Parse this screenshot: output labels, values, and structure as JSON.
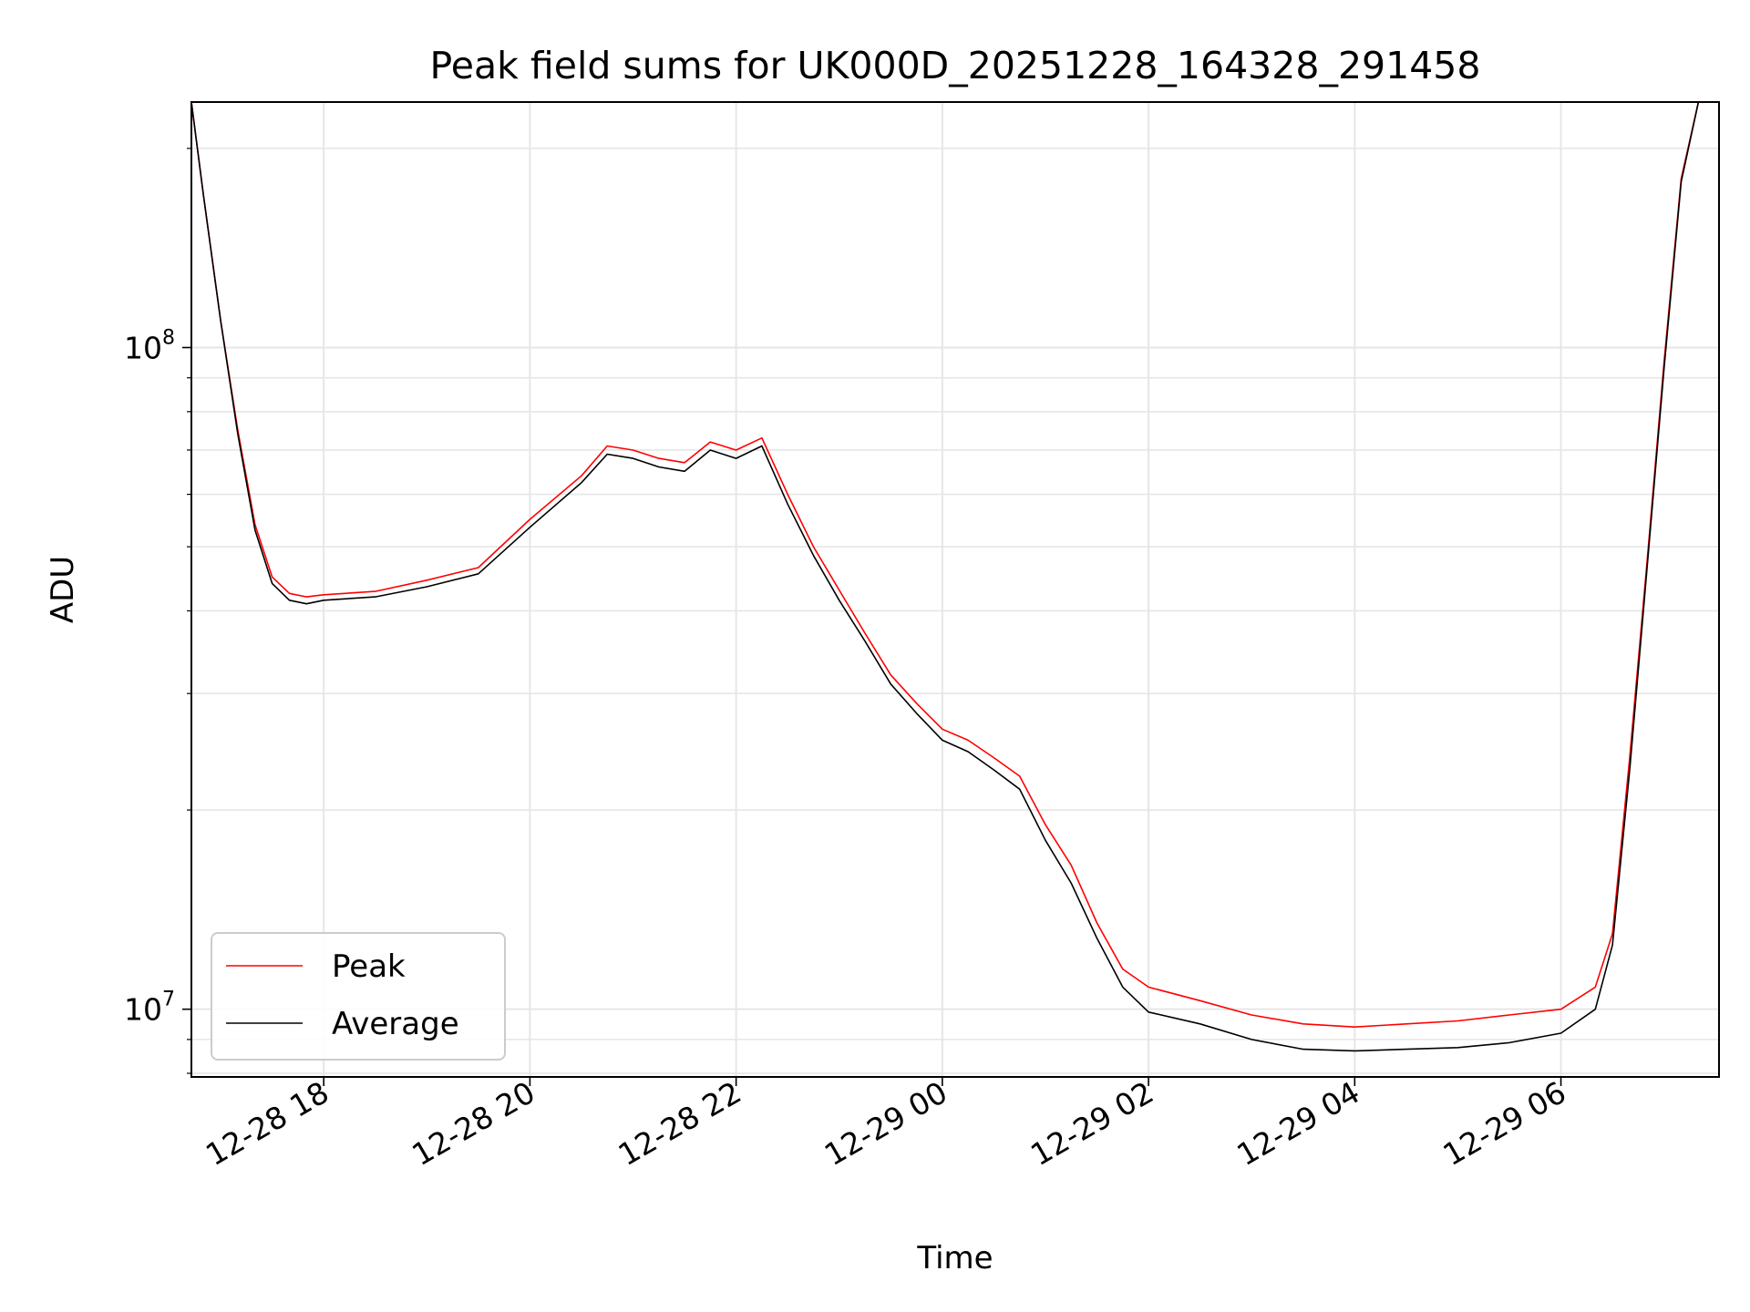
{
  "chart_data": {
    "type": "line",
    "title": "Peak field sums for UK000D_20251228_164328_291458",
    "xlabel": "Time",
    "ylabel": "ADU",
    "yscale": "log",
    "x_axis_type": "datetime",
    "xlim": [
      "2025-12-28T16:43",
      "2025-12-29T07:32"
    ],
    "ylim": [
      7900000,
      235000000
    ],
    "x_ticks": [
      {
        "at": "2025-12-28T18:00",
        "label": "12-28 18"
      },
      {
        "at": "2025-12-28T20:00",
        "label": "12-28 20"
      },
      {
        "at": "2025-12-28T22:00",
        "label": "12-28 22"
      },
      {
        "at": "2025-12-29T00:00",
        "label": "12-29 00"
      },
      {
        "at": "2025-12-29T02:00",
        "label": "12-29 02"
      },
      {
        "at": "2025-12-29T04:00",
        "label": "12-29 04"
      },
      {
        "at": "2025-12-29T06:00",
        "label": "12-29 06"
      }
    ],
    "y_major_ticks": [
      {
        "value": 10000000,
        "base": "10",
        "exp": "7"
      },
      {
        "value": 100000000,
        "base": "10",
        "exp": "8"
      }
    ],
    "grid": true,
    "legend": "lower-left",
    "series": [
      {
        "name": "Peak",
        "color": "#ff0000",
        "points": [
          [
            "2025-12-28T16:43",
            235000000
          ],
          [
            "2025-12-28T16:50",
            170000000
          ],
          [
            "2025-12-28T17:00",
            110000000
          ],
          [
            "2025-12-28T17:10",
            75000000
          ],
          [
            "2025-12-28T17:20",
            54000000
          ],
          [
            "2025-12-28T17:30",
            45000000
          ],
          [
            "2025-12-28T17:40",
            42500000
          ],
          [
            "2025-12-28T17:50",
            42000000
          ],
          [
            "2025-12-28T18:00",
            42300000
          ],
          [
            "2025-12-28T18:30",
            42800000
          ],
          [
            "2025-12-28T19:00",
            44500000
          ],
          [
            "2025-12-28T19:30",
            46500000
          ],
          [
            "2025-12-28T20:00",
            55000000
          ],
          [
            "2025-12-28T20:30",
            64000000
          ],
          [
            "2025-12-28T20:45",
            71000000
          ],
          [
            "2025-12-28T21:00",
            70000000
          ],
          [
            "2025-12-28T21:15",
            68000000
          ],
          [
            "2025-12-28T21:30",
            67000000
          ],
          [
            "2025-12-28T21:45",
            72000000
          ],
          [
            "2025-12-28T22:00",
            70000000
          ],
          [
            "2025-12-28T22:15",
            73000000
          ],
          [
            "2025-12-28T22:30",
            60000000
          ],
          [
            "2025-12-28T22:45",
            50000000
          ],
          [
            "2025-12-28T23:00",
            43000000
          ],
          [
            "2025-12-28T23:15",
            37000000
          ],
          [
            "2025-12-28T23:30",
            32000000
          ],
          [
            "2025-12-28T23:45",
            29000000
          ],
          [
            "2025-12-29T00:00",
            26500000
          ],
          [
            "2025-12-29T00:15",
            25500000
          ],
          [
            "2025-12-29T00:30",
            24000000
          ],
          [
            "2025-12-29T00:45",
            22500000
          ],
          [
            "2025-12-29T01:00",
            19000000
          ],
          [
            "2025-12-29T01:15",
            16500000
          ],
          [
            "2025-12-29T01:30",
            13500000
          ],
          [
            "2025-12-29T01:45",
            11500000
          ],
          [
            "2025-12-29T02:00",
            10800000
          ],
          [
            "2025-12-29T02:30",
            10300000
          ],
          [
            "2025-12-29T03:00",
            9800000
          ],
          [
            "2025-12-29T03:30",
            9500000
          ],
          [
            "2025-12-29T04:00",
            9400000
          ],
          [
            "2025-12-29T04:30",
            9500000
          ],
          [
            "2025-12-29T05:00",
            9600000
          ],
          [
            "2025-12-29T05:30",
            9800000
          ],
          [
            "2025-12-29T06:00",
            10000000
          ],
          [
            "2025-12-29T06:20",
            10800000
          ],
          [
            "2025-12-29T06:30",
            13000000
          ],
          [
            "2025-12-29T06:40",
            24000000
          ],
          [
            "2025-12-29T06:50",
            47000000
          ],
          [
            "2025-12-29T07:00",
            95000000
          ],
          [
            "2025-12-29T07:10",
            180000000
          ],
          [
            "2025-12-29T07:20",
            235000000
          ],
          [
            "2025-12-29T07:32",
            235000000
          ]
        ]
      },
      {
        "name": "Average",
        "color": "#000000",
        "points": [
          [
            "2025-12-28T16:43",
            235000000
          ],
          [
            "2025-12-28T16:50",
            170000000
          ],
          [
            "2025-12-28T17:00",
            110000000
          ],
          [
            "2025-12-28T17:10",
            74000000
          ],
          [
            "2025-12-28T17:20",
            53000000
          ],
          [
            "2025-12-28T17:30",
            44000000
          ],
          [
            "2025-12-28T17:40",
            41500000
          ],
          [
            "2025-12-28T17:50",
            41000000
          ],
          [
            "2025-12-28T18:00",
            41500000
          ],
          [
            "2025-12-28T18:30",
            42000000
          ],
          [
            "2025-12-28T19:00",
            43500000
          ],
          [
            "2025-12-28T19:30",
            45500000
          ],
          [
            "2025-12-28T20:00",
            53500000
          ],
          [
            "2025-12-28T20:30",
            62500000
          ],
          [
            "2025-12-28T20:45",
            69000000
          ],
          [
            "2025-12-28T21:00",
            68000000
          ],
          [
            "2025-12-28T21:15",
            66000000
          ],
          [
            "2025-12-28T21:30",
            65000000
          ],
          [
            "2025-12-28T21:45",
            70000000
          ],
          [
            "2025-12-28T22:00",
            68000000
          ],
          [
            "2025-12-28T22:15",
            71000000
          ],
          [
            "2025-12-28T22:30",
            58000000
          ],
          [
            "2025-12-28T22:45",
            48500000
          ],
          [
            "2025-12-28T23:00",
            41500000
          ],
          [
            "2025-12-28T23:15",
            36000000
          ],
          [
            "2025-12-28T23:30",
            31000000
          ],
          [
            "2025-12-28T23:45",
            28000000
          ],
          [
            "2025-12-29T00:00",
            25500000
          ],
          [
            "2025-12-29T00:15",
            24500000
          ],
          [
            "2025-12-29T00:30",
            23000000
          ],
          [
            "2025-12-29T00:45",
            21500000
          ],
          [
            "2025-12-29T01:00",
            18000000
          ],
          [
            "2025-12-29T01:15",
            15500000
          ],
          [
            "2025-12-29T01:30",
            12800000
          ],
          [
            "2025-12-29T01:45",
            10800000
          ],
          [
            "2025-12-29T02:00",
            9900000
          ],
          [
            "2025-12-29T02:30",
            9500000
          ],
          [
            "2025-12-29T03:00",
            9000000
          ],
          [
            "2025-12-29T03:30",
            8700000
          ],
          [
            "2025-12-29T04:00",
            8650000
          ],
          [
            "2025-12-29T04:30",
            8700000
          ],
          [
            "2025-12-29T05:00",
            8750000
          ],
          [
            "2025-12-29T05:30",
            8900000
          ],
          [
            "2025-12-29T06:00",
            9200000
          ],
          [
            "2025-12-29T06:20",
            10000000
          ],
          [
            "2025-12-29T06:30",
            12500000
          ],
          [
            "2025-12-29T06:40",
            23000000
          ],
          [
            "2025-12-29T06:50",
            46000000
          ],
          [
            "2025-12-29T07:00",
            93000000
          ],
          [
            "2025-12-29T07:10",
            178000000
          ],
          [
            "2025-12-29T07:20",
            235000000
          ],
          [
            "2025-12-29T07:32",
            235000000
          ]
        ]
      }
    ]
  }
}
